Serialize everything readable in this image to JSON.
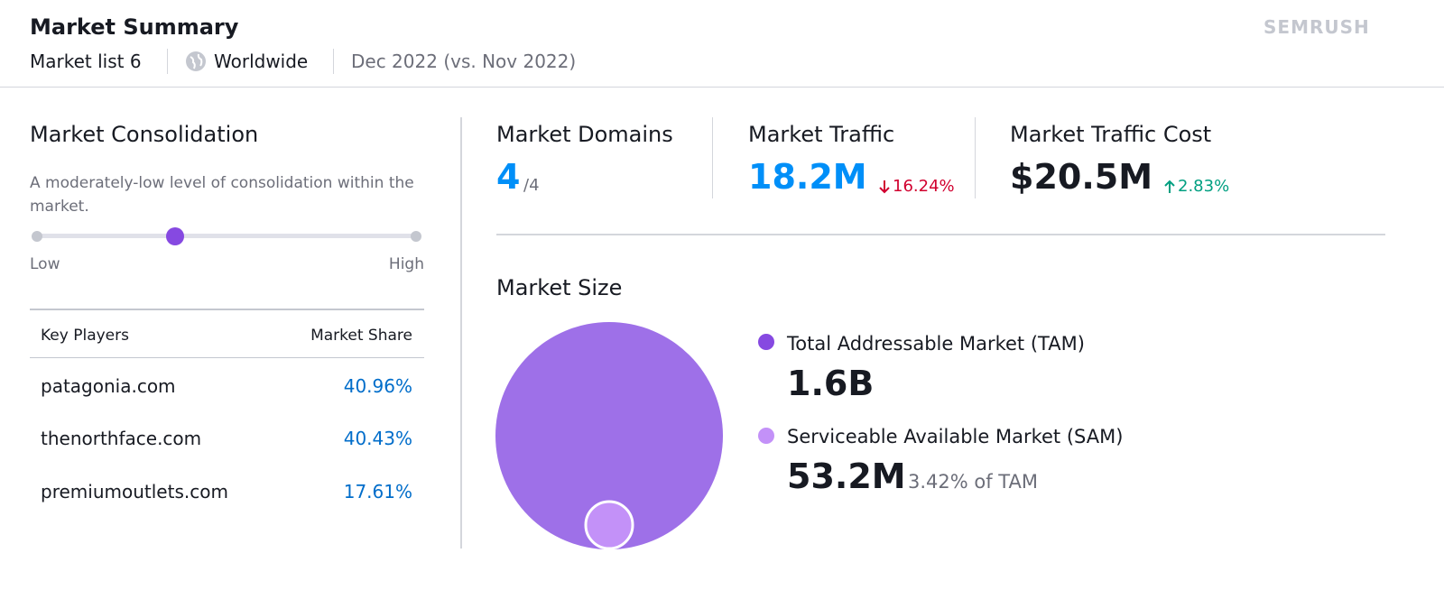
{
  "header": {
    "title": "Market Summary",
    "list": "Market list 6",
    "region": "Worldwide",
    "period": "Dec 2022 (vs. Nov 2022)",
    "brand": "SEMRUSH"
  },
  "consolidation": {
    "title": "Market Consolidation",
    "description": "A moderately-low level of consolidation within the market.",
    "low": "Low",
    "high": "High"
  },
  "table": {
    "columns": [
      "Key Players",
      "Market Share"
    ],
    "rows": [
      [
        "patagonia.com",
        "40.96%"
      ],
      [
        "thenorthface.com",
        "40.43%"
      ],
      [
        "premiumoutlets.com",
        "17.61%"
      ]
    ]
  },
  "metrics": [
    {
      "label": "Market Domains",
      "value": "4",
      "total": "/4"
    },
    {
      "label": "Market Traffic",
      "value": "18.2M",
      "change": "16.24%"
    },
    {
      "label": "Market Traffic Cost",
      "value": "$20.5M",
      "change": "2.83%"
    }
  ],
  "market_size": {
    "title": "Market Size",
    "legend": [
      {
        "label": "Total Addressable Market (TAM)",
        "value": "1.6B"
      },
      {
        "label": "Serviceable Available Market (SAM)",
        "value": "53.2M",
        "note": "3.42% of TAM"
      }
    ]
  }
}
